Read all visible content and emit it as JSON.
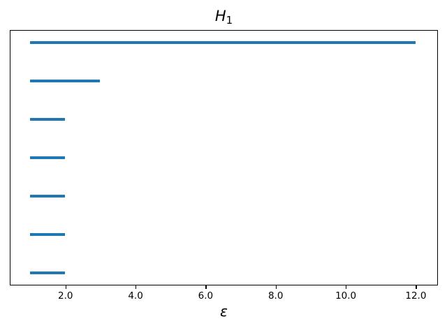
{
  "figure": {
    "title_main": "H",
    "title_subscript": "1",
    "xlabel": "ε"
  },
  "chart_data": {
    "type": "bar",
    "subtype": "persistence-barcode-intervals",
    "title": "H_1",
    "xlabel": "ε",
    "ylabel": "",
    "xlim": [
      0.44,
      12.6
    ],
    "ylim": [
      0.7,
      7.3
    ],
    "grid": false,
    "legend": false,
    "bar_color": "#1f77b4",
    "axis_color": "#000000",
    "x_ticks": [
      {
        "value": 2.0,
        "label": "2.0"
      },
      {
        "value": 4.0,
        "label": "4.0"
      },
      {
        "value": 6.0,
        "label": "6.0"
      },
      {
        "value": 8.0,
        "label": "8.0"
      },
      {
        "value": 10.0,
        "label": "10.0"
      },
      {
        "value": 12.0,
        "label": "12.0"
      }
    ],
    "bars": [
      {
        "start": 1.0,
        "end": 12.0
      },
      {
        "start": 1.0,
        "end": 3.0
      },
      {
        "start": 1.0,
        "end": 2.0
      },
      {
        "start": 1.0,
        "end": 2.0
      },
      {
        "start": 1.0,
        "end": 2.0
      },
      {
        "start": 1.0,
        "end": 2.0
      },
      {
        "start": 1.0,
        "end": 2.0
      }
    ]
  }
}
